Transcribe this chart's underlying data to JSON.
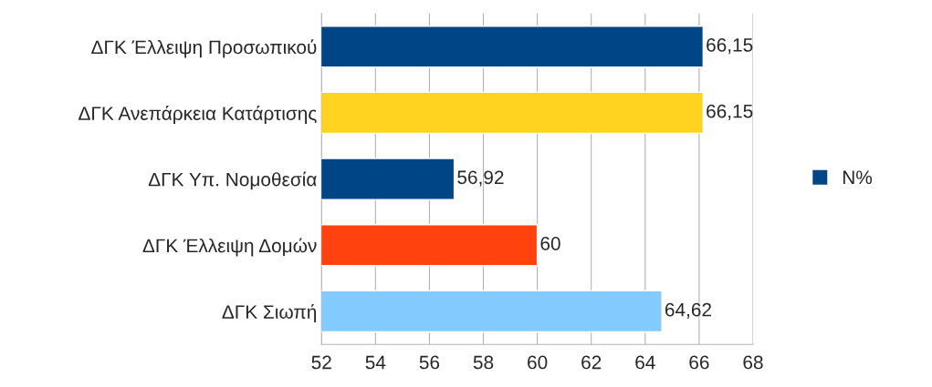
{
  "chart_data": {
    "type": "bar",
    "orientation": "horizontal",
    "categories": [
      "ΔΓΚ Έλλειψη Προσωπικού",
      "ΔΓΚ Ανεπάρκεια Κατάρτισης",
      "ΔΓΚ Υπ. Νομοθεσία",
      "ΔΓΚ Έλλειψη Δομών",
      "ΔΓΚ Σιωπή"
    ],
    "series": [
      {
        "name": "N%",
        "color": "#004586",
        "colors": [
          "#004586",
          "#ffd320",
          "#004586",
          "#ff420e",
          "#83caff"
        ],
        "values": [
          66.15,
          66.15,
          56.92,
          60,
          64.62
        ],
        "value_labels": [
          "66,15",
          "66,15",
          "56,92",
          "60",
          "64,62"
        ]
      }
    ],
    "xlim": [
      52,
      68
    ],
    "xticks": [
      52,
      54,
      56,
      58,
      60,
      62,
      64,
      66,
      68
    ],
    "grid": "x",
    "legend": "right"
  }
}
